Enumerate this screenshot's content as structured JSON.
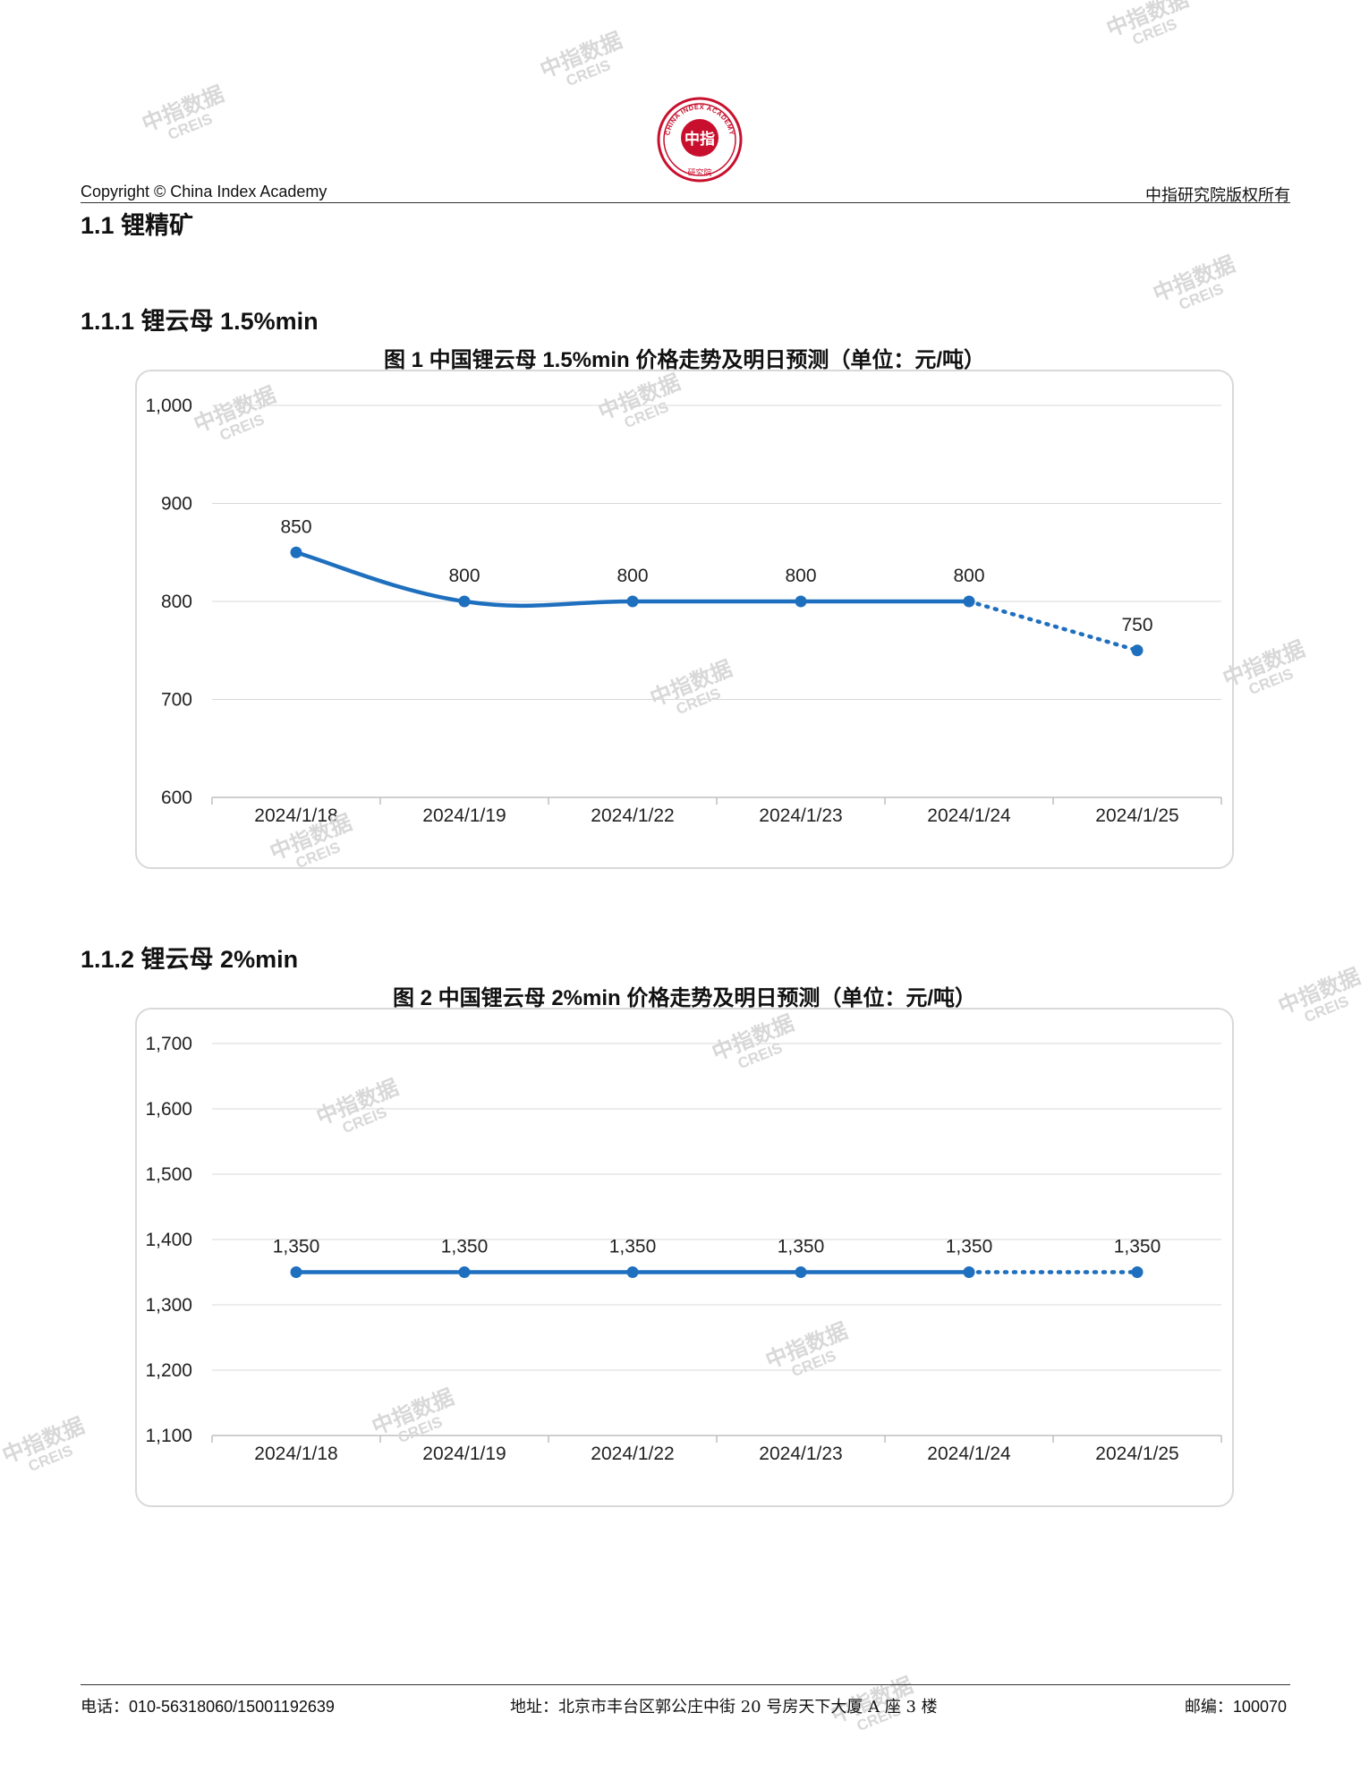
{
  "header": {
    "copyright": "Copyright © China Index Academy",
    "rights": "中指研究院版权所有",
    "logo_top_text": "CHINA INDEX ACADEMY",
    "logo_center_text": "中指",
    "logo_bottom_text": "研究院"
  },
  "section": {
    "title": "1.1 锂精矿"
  },
  "subsections": [
    {
      "title": "1.1.1 锂云母 1.5%min"
    },
    {
      "title": "1.1.2 锂云母 2%min"
    }
  ],
  "watermark": {
    "cn": "中指数据",
    "en": "CREIS"
  },
  "chart_data": [
    {
      "type": "line",
      "title": "图 1 中国锂云母 1.5%min 价格走势及明日预测（单位：元/吨）",
      "categories": [
        "2024/1/18",
        "2024/1/19",
        "2024/1/22",
        "2024/1/23",
        "2024/1/24",
        "2024/1/25"
      ],
      "values": [
        850,
        800,
        800,
        800,
        800,
        750
      ],
      "data_labels": [
        "850",
        "800",
        "800",
        "800",
        "800",
        "750"
      ],
      "forecast_from_index": 4,
      "ylim": [
        600,
        1000
      ],
      "yticks": [
        600,
        700,
        800,
        900,
        1000
      ],
      "ytick_labels": [
        "600",
        "700",
        "800",
        "900",
        "1,000"
      ],
      "grid": true,
      "legend": "none",
      "color": "#1f6fbf"
    },
    {
      "type": "line",
      "title": "图 2 中国锂云母 2%min 价格走势及明日预测（单位：元/吨）",
      "categories": [
        "2024/1/18",
        "2024/1/19",
        "2024/1/22",
        "2024/1/23",
        "2024/1/24",
        "2024/1/25"
      ],
      "values": [
        1350,
        1350,
        1350,
        1350,
        1350,
        1350
      ],
      "data_labels": [
        "1,350",
        "1,350",
        "1,350",
        "1,350",
        "1,350",
        "1,350"
      ],
      "forecast_from_index": 4,
      "ylim": [
        1100,
        1700
      ],
      "yticks": [
        1100,
        1200,
        1300,
        1400,
        1500,
        1600,
        1700
      ],
      "ytick_labels": [
        "1,100",
        "1,200",
        "1,300",
        "1,400",
        "1,500",
        "1,600",
        "1,700"
      ],
      "grid": true,
      "legend": "none",
      "color": "#1f6fbf"
    }
  ],
  "footer": {
    "phone": "电话：010-56318060/15001192639",
    "address": "地址：北京市丰台区郭公庄中街 20 号房天下大厦 A 座 3 楼",
    "postcode": "邮编：100070"
  }
}
